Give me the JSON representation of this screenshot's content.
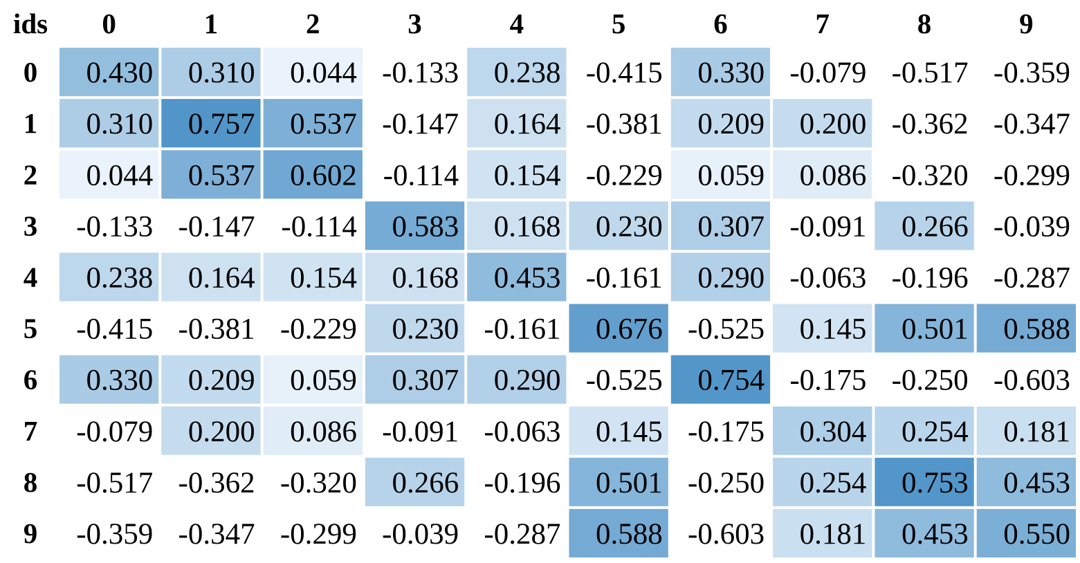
{
  "chart_data": {
    "type": "heatmap",
    "corner_label": "ids",
    "columns": [
      "0",
      "1",
      "2",
      "3",
      "4",
      "5",
      "6",
      "7",
      "8",
      "9"
    ],
    "rows": [
      "0",
      "1",
      "2",
      "3",
      "4",
      "5",
      "6",
      "7",
      "8",
      "9"
    ],
    "values": [
      [
        0.43,
        0.31,
        0.044,
        -0.133,
        0.238,
        -0.415,
        0.33,
        -0.079,
        -0.517,
        -0.359
      ],
      [
        0.31,
        0.757,
        0.537,
        -0.147,
        0.164,
        -0.381,
        0.209,
        0.2,
        -0.362,
        -0.347
      ],
      [
        0.044,
        0.537,
        0.602,
        -0.114,
        0.154,
        -0.229,
        0.059,
        0.086,
        -0.32,
        -0.299
      ],
      [
        -0.133,
        -0.147,
        -0.114,
        0.583,
        0.168,
        0.23,
        0.307,
        -0.091,
        0.266,
        -0.039
      ],
      [
        0.238,
        0.164,
        0.154,
        0.168,
        0.453,
        -0.161,
        0.29,
        -0.063,
        -0.196,
        -0.287
      ],
      [
        -0.415,
        -0.381,
        -0.229,
        0.23,
        -0.161,
        0.676,
        -0.525,
        0.145,
        0.501,
        0.588
      ],
      [
        0.33,
        0.209,
        0.059,
        0.307,
        0.29,
        -0.525,
        0.754,
        -0.175,
        -0.25,
        -0.603
      ],
      [
        -0.079,
        0.2,
        0.086,
        -0.091,
        -0.063,
        0.145,
        -0.175,
        0.304,
        0.254,
        0.181
      ],
      [
        -0.517,
        -0.362,
        -0.32,
        0.266,
        -0.196,
        0.501,
        -0.25,
        0.254,
        0.753,
        0.453
      ],
      [
        -0.359,
        -0.347,
        -0.299,
        -0.039,
        -0.287,
        0.588,
        -0.603,
        0.181,
        0.453,
        0.55
      ]
    ],
    "value_labels": [
      [
        "0.430",
        "0.310",
        "0.044",
        "-0.133",
        "0.238",
        "-0.415",
        "0.330",
        "-0.079",
        "-0.517",
        "-0.359"
      ],
      [
        "0.310",
        "0.757",
        "0.537",
        "-0.147",
        "0.164",
        "-0.381",
        "0.209",
        "0.200",
        "-0.362",
        "-0.347"
      ],
      [
        "0.044",
        "0.537",
        "0.602",
        "-0.114",
        "0.154",
        "-0.229",
        "0.059",
        "0.086",
        "-0.320",
        "-0.299"
      ],
      [
        "-0.133",
        "-0.147",
        "-0.114",
        "0.583",
        "0.168",
        "0.230",
        "0.307",
        "-0.091",
        "0.266",
        "-0.039"
      ],
      [
        "0.238",
        "0.164",
        "0.154",
        "0.168",
        "0.453",
        "-0.161",
        "0.290",
        "-0.063",
        "-0.196",
        "-0.287"
      ],
      [
        "-0.415",
        "-0.381",
        "-0.229",
        "0.230",
        "-0.161",
        "0.676",
        "-0.525",
        "0.145",
        "0.501",
        "0.588"
      ],
      [
        "0.330",
        "0.209",
        "0.059",
        "0.307",
        "0.290",
        "-0.525",
        "0.754",
        "-0.175",
        "-0.250",
        "-0.603"
      ],
      [
        "-0.079",
        "0.200",
        "0.086",
        "-0.091",
        "-0.063",
        "0.145",
        "-0.175",
        "0.304",
        "0.254",
        "0.181"
      ],
      [
        "-0.517",
        "-0.362",
        "-0.320",
        "0.266",
        "-0.196",
        "0.501",
        "-0.250",
        "0.254",
        "0.753",
        "0.453"
      ],
      [
        "-0.359",
        "-0.347",
        "-0.299",
        "-0.039",
        "-0.287",
        "0.588",
        "-0.603",
        "0.181",
        "0.453",
        "0.550"
      ]
    ],
    "color_scale": {
      "low": "#f7fbff",
      "high": "#4a90c6",
      "range": [
        0,
        0.8
      ],
      "negative_fill": "none"
    },
    "grid": false,
    "legend": "none"
  }
}
